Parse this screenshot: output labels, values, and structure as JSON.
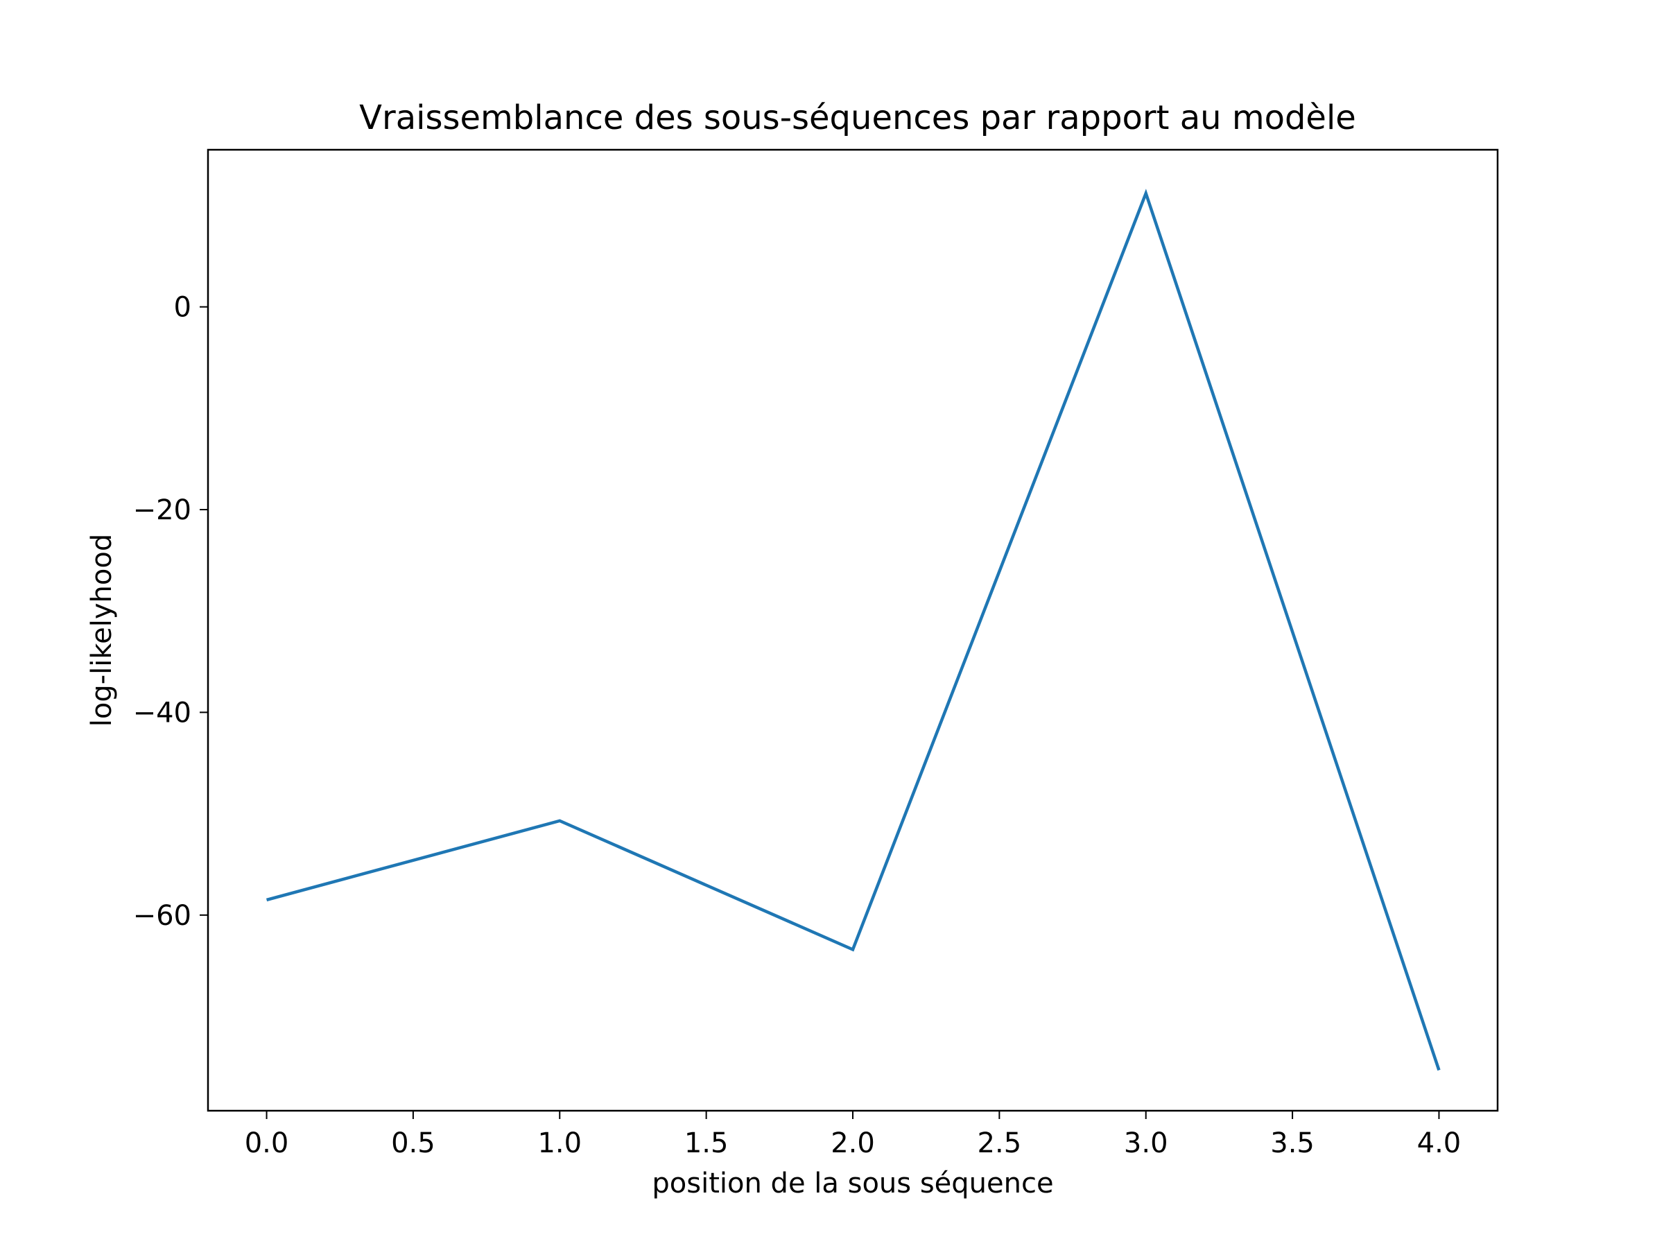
{
  "chart_data": {
    "type": "line",
    "title": "Vraissemblance des sous-séquences par rapport au modèle",
    "xlabel": "position de la sous séquence",
    "ylabel": "log-likelyhood",
    "x": [
      0,
      1,
      2,
      3,
      4
    ],
    "series": [
      {
        "values": [
          -58.5,
          -50.7,
          -63.4,
          11.2,
          -75.3
        ],
        "color": "#1f77b4"
      }
    ],
    "xlim": [
      -0.2,
      4.2
    ],
    "ylim": [
      -79.3,
      15.5
    ],
    "xticks": [
      0.0,
      0.5,
      1.0,
      1.5,
      2.0,
      2.5,
      3.0,
      3.5,
      4.0
    ],
    "xtick_labels": [
      "0.0",
      "0.5",
      "1.0",
      "1.5",
      "2.0",
      "2.5",
      "3.0",
      "3.5",
      "4.0"
    ],
    "yticks": [
      -60,
      -40,
      -20,
      0
    ],
    "ytick_labels": [
      "−60",
      "−40",
      "−20",
      "0"
    ],
    "grid": false,
    "legend": "none"
  }
}
